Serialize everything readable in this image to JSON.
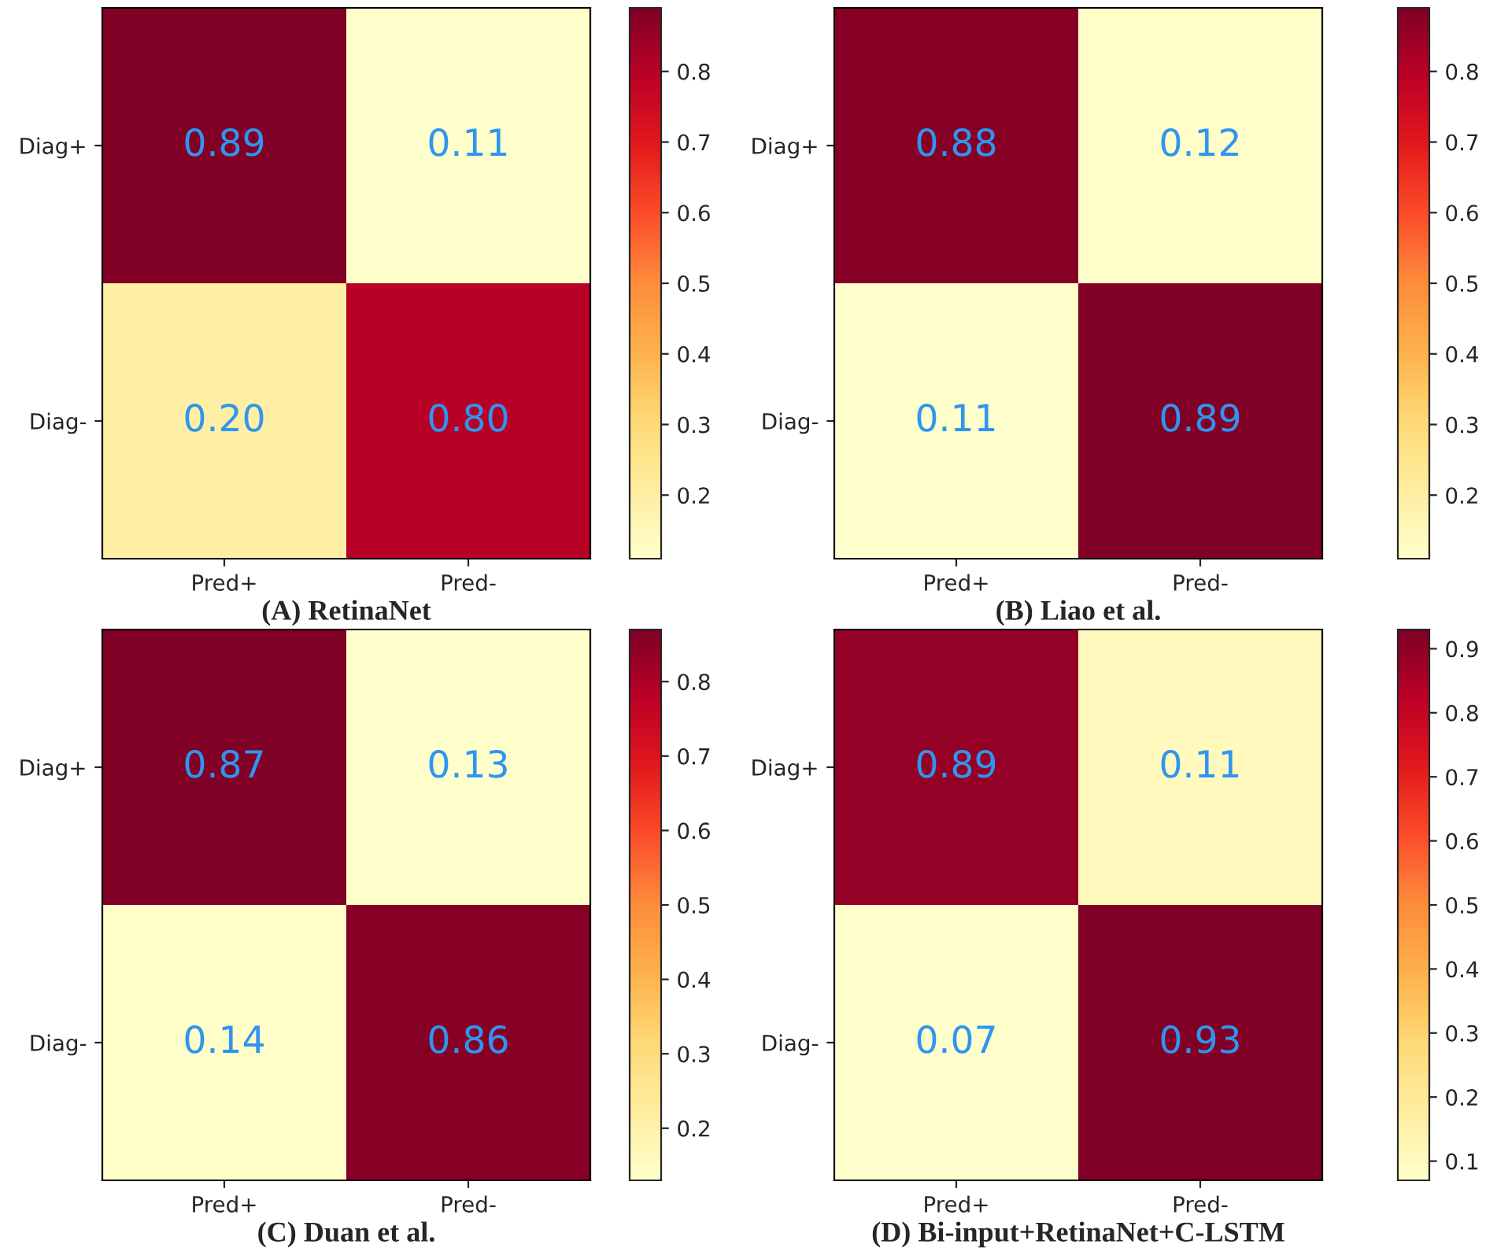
{
  "chart_data": [
    {
      "type": "heatmap",
      "title": "(A) RetinaNet",
      "categories": [
        "Pred+",
        "Pred-"
      ],
      "y_categories": [
        "Diag+",
        "Diag-"
      ],
      "cells": [
        [
          0.89,
          0.11
        ],
        [
          0.2,
          0.8
        ]
      ],
      "cell_labels": [
        [
          "0.89",
          "0.11"
        ],
        [
          "0.20",
          "0.80"
        ]
      ],
      "clim": [
        0.11,
        0.89
      ],
      "cticks": [
        0.2,
        0.3,
        0.4,
        0.5,
        0.6,
        0.7,
        0.8
      ]
    },
    {
      "type": "heatmap",
      "title": "(B) Liao et al.",
      "categories": [
        "Pred+",
        "Pred-"
      ],
      "y_categories": [
        "Diag+",
        "Diag-"
      ],
      "cells": [
        [
          0.88,
          0.12
        ],
        [
          0.11,
          0.89
        ]
      ],
      "cell_labels": [
        [
          "0.88",
          "0.12"
        ],
        [
          "0.11",
          "0.89"
        ]
      ],
      "clim": [
        0.11,
        0.89
      ],
      "cticks": [
        0.2,
        0.3,
        0.4,
        0.5,
        0.6,
        0.7,
        0.8
      ]
    },
    {
      "type": "heatmap",
      "title": "(C) Duan et al.",
      "categories": [
        "Pred+",
        "Pred-"
      ],
      "y_categories": [
        "Diag+",
        "Diag-"
      ],
      "cells": [
        [
          0.87,
          0.13
        ],
        [
          0.14,
          0.86
        ]
      ],
      "cell_labels": [
        [
          "0.87",
          "0.13"
        ],
        [
          "0.14",
          "0.86"
        ]
      ],
      "clim": [
        0.13,
        0.87
      ],
      "cticks": [
        0.2,
        0.3,
        0.4,
        0.5,
        0.6,
        0.7,
        0.8
      ]
    },
    {
      "type": "heatmap",
      "title": "(D) Bi-input+RetinaNet+C-LSTM",
      "categories": [
        "Pred+",
        "Pred-"
      ],
      "y_categories": [
        "Diag+",
        "Diag-"
      ],
      "cells": [
        [
          0.89,
          0.11
        ],
        [
          0.07,
          0.93
        ]
      ],
      "cell_labels": [
        [
          "0.89",
          "0.11"
        ],
        [
          "0.07",
          "0.93"
        ]
      ],
      "clim": [
        0.07,
        0.93
      ],
      "cticks": [
        0.1,
        0.2,
        0.3,
        0.4,
        0.5,
        0.6,
        0.7,
        0.8,
        0.9
      ]
    }
  ]
}
